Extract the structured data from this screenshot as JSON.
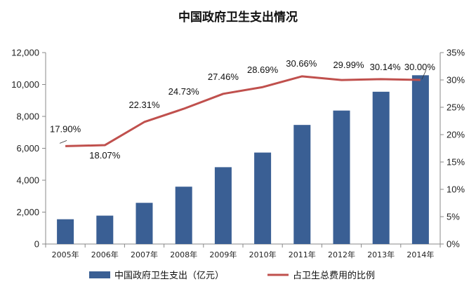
{
  "chart_data": {
    "type": "bar+line",
    "title": "中国政府卫生支出情况",
    "categories": [
      "2005年",
      "2006年",
      "2007年",
      "2008年",
      "2009年",
      "2010年",
      "2011年",
      "2012年",
      "2013年",
      "2014年"
    ],
    "series": [
      {
        "name": "中国政府卫生支出（亿元）",
        "type": "bar",
        "axis": "left",
        "color": "#3a5f94",
        "values": [
          1553,
          1779,
          2582,
          3594,
          4817,
          5733,
          7465,
          8366,
          9546,
          10580
        ]
      },
      {
        "name": "占卫生总费用的比例",
        "type": "line",
        "axis": "right",
        "color": "#c0504d",
        "values": [
          17.9,
          18.07,
          22.31,
          24.73,
          27.46,
          28.69,
          30.66,
          29.99,
          30.14,
          30.0
        ],
        "labels": [
          "17.90%",
          "18.07%",
          "22.31%",
          "24.73%",
          "27.46%",
          "28.69%",
          "30.66%",
          "29.99%",
          "30.14%",
          "30.00%"
        ]
      }
    ],
    "left_axis": {
      "ylim": [
        0,
        12000
      ],
      "ticks": [
        0,
        2000,
        4000,
        6000,
        8000,
        10000,
        12000
      ],
      "tick_labels": [
        "0",
        "2,000",
        "4,000",
        "6,000",
        "8,000",
        "10,000",
        "12,000"
      ]
    },
    "right_axis": {
      "ylim": [
        0,
        35
      ],
      "ticks": [
        0,
        5,
        10,
        15,
        20,
        25,
        30,
        35
      ],
      "tick_labels": [
        "0%",
        "5%",
        "10%",
        "15%",
        "20%",
        "25%",
        "30%",
        "35%"
      ]
    },
    "grid": false,
    "legend": "bottom"
  }
}
